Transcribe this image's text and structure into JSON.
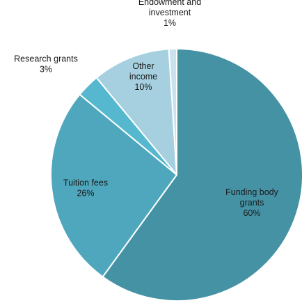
{
  "chart_data": {
    "type": "pie",
    "start_angle_deg": 0,
    "direction": "clockwise",
    "legend": "none",
    "slices": [
      {
        "label": "Funding body grants",
        "line1": "Funding body",
        "line2": "grants",
        "value": 60,
        "value_text": "60%",
        "color": "#4592a5",
        "label_color": "#1a1a1a"
      },
      {
        "label": "Tuition fees",
        "line1": "Tuition fees",
        "line2": "",
        "value": 26,
        "value_text": "26%",
        "color": "#4fa7bd",
        "label_color": "#1a1a1a"
      },
      {
        "label": "Research grants",
        "line1": "Research grants",
        "line2": "",
        "value": 3,
        "value_text": "3%",
        "color": "#56b8cf",
        "label_color": "#1a1a1a"
      },
      {
        "label": "Other income",
        "line1": "Other",
        "line2": "income",
        "value": 10,
        "value_text": "10%",
        "color": "#a6d0e0",
        "label_color": "#1a1a1a"
      },
      {
        "label": "Endowment and investment",
        "line1": "Endowment and",
        "line2": "investment",
        "value": 1,
        "value_text": "1%",
        "color": "#c9e2ed",
        "label_color": "#1a1a1a"
      }
    ]
  }
}
